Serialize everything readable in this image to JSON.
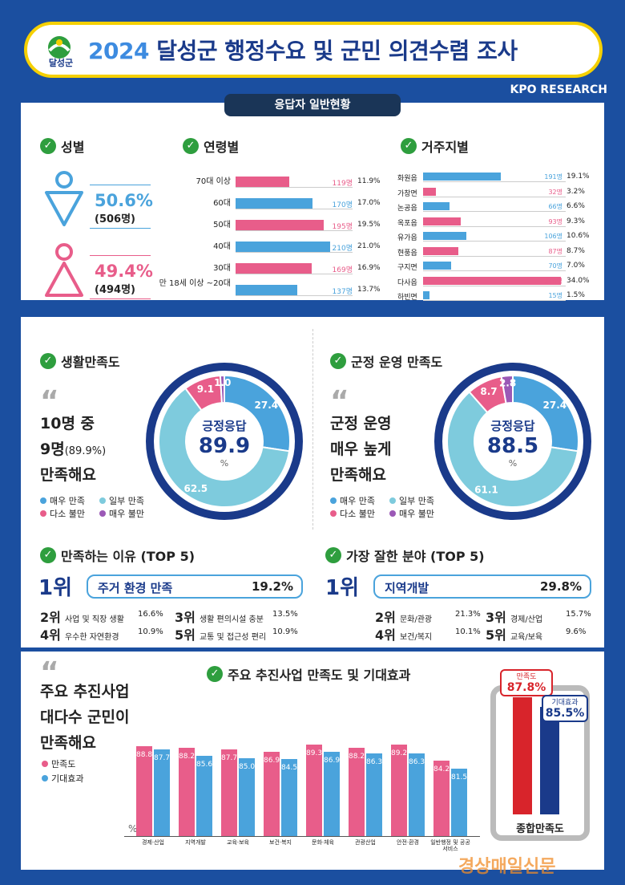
{
  "header": {
    "logo_text": "달성군",
    "title_year": "2024",
    "title_rest": "달성군 행정수요 및 군민 의견수렴 조사",
    "org": "KPO RESEARCH"
  },
  "section1": {
    "tab": "응답자 일반현황",
    "gender_title": "성별",
    "age_title": "연령별",
    "region_title": "거주지별",
    "male": {
      "pct": "50.6%",
      "count": "(506명)"
    },
    "female": {
      "pct": "49.4%",
      "count": "(494명)"
    }
  },
  "colors": {
    "pink": "#e85d8a",
    "blue": "#4aa3dc",
    "light": "#7ecbdd",
    "purple": "#9b59b6",
    "navy": "#1a3a8a",
    "green": "#2e9e3e"
  },
  "age": [
    {
      "label": "70대 이상",
      "count": "119명",
      "pct": "11.9%",
      "value": 11.9,
      "color": "pink"
    },
    {
      "label": "60대",
      "count": "170명",
      "pct": "17.0%",
      "value": 17.0,
      "color": "blue"
    },
    {
      "label": "50대",
      "count": "195명",
      "pct": "19.5%",
      "value": 19.5,
      "color": "pink"
    },
    {
      "label": "40대",
      "count": "210명",
      "pct": "21.0%",
      "value": 21.0,
      "color": "blue"
    },
    {
      "label": "30대",
      "count": "169명",
      "pct": "16.9%",
      "value": 16.9,
      "color": "pink"
    },
    {
      "label": "만 18세 이상 ~20대",
      "count": "137명",
      "pct": "13.7%",
      "value": 13.7,
      "color": "blue"
    }
  ],
  "region": [
    {
      "label": "화원읍",
      "count": "191명",
      "pct": "19.1%",
      "value": 19.1,
      "color": "blue"
    },
    {
      "label": "가창면",
      "count": "32명",
      "pct": "3.2%",
      "value": 3.2,
      "color": "pink"
    },
    {
      "label": "논공읍",
      "count": "66명",
      "pct": "6.6%",
      "value": 6.6,
      "color": "blue"
    },
    {
      "label": "옥포읍",
      "count": "93명",
      "pct": "9.3%",
      "value": 9.3,
      "color": "pink"
    },
    {
      "label": "유가읍",
      "count": "106명",
      "pct": "10.6%",
      "value": 10.6,
      "color": "blue"
    },
    {
      "label": "현풍읍",
      "count": "87명",
      "pct": "8.7%",
      "value": 8.7,
      "color": "pink"
    },
    {
      "label": "구지면",
      "count": "70명",
      "pct": "7.0%",
      "value": 7.0,
      "color": "blue"
    },
    {
      "label": "다사읍",
      "count": "340명",
      "pct": "34.0%",
      "value": 34.0,
      "color": "pink"
    },
    {
      "label": "하빈면",
      "count": "15명",
      "pct": "1.5%",
      "value": 1.5,
      "color": "blue"
    }
  ],
  "life": {
    "title": "생활만족도",
    "l1": "10명 중",
    "l2a": "9명",
    "l2b": "(89.9%)",
    "l3": "만족해요",
    "center_label": "긍정응답",
    "center_value": "89.9",
    "unit": "%"
  },
  "gov": {
    "title": "군정 운영 만족도",
    "l1": "군정 운영",
    "l2": "매우 높게",
    "l3": "만족해요",
    "center_label": "긍정응답",
    "center_value": "88.5",
    "unit": "%"
  },
  "legend": [
    "매우 만족",
    "일부 만족",
    "다소 불만",
    "매우 불만"
  ],
  "reasons": {
    "title": "만족하는 이유 (TOP 5)",
    "rank1": "1위",
    "top": "주거 환경 만족",
    "top_pct": "19.2%",
    "items": [
      {
        "r": "2위",
        "t": "사업 및 직장 생활",
        "p": "16.6%"
      },
      {
        "r": "3위",
        "t": "생활 편의시설 충분",
        "p": "13.5%"
      },
      {
        "r": "4위",
        "t": "우수한 자연환경",
        "p": "10.9%"
      },
      {
        "r": "5위",
        "t": "교통 및 접근성 편리",
        "p": "10.9%"
      }
    ]
  },
  "best": {
    "title": "가장 잘한 분야 (TOP 5)",
    "rank1": "1위",
    "top": "지역개발",
    "top_pct": "29.8%",
    "items": [
      {
        "r": "2위",
        "t": "문화/관광",
        "p": "21.3%"
      },
      {
        "r": "3위",
        "t": "경제/산업",
        "p": "15.7%"
      },
      {
        "r": "4위",
        "t": "보건/복지",
        "p": "10.1%"
      },
      {
        "r": "5위",
        "t": "교육/보육",
        "p": "9.6%"
      }
    ]
  },
  "projects": {
    "quote1": "주요 추진사업",
    "quote2": "대다수 군민이",
    "quote3": "만족해요",
    "title": "주요 추진사업 만족도 및 기대효과",
    "unit": "%",
    "total_label": "종합만족도",
    "sat_label": "만족도",
    "sat_value": "87.8%",
    "exp_label": "기대효과",
    "exp_value": "85.5%"
  },
  "watermark": "경상매일신문",
  "chart_data": [
    {
      "type": "pie",
      "title": "생활만족도",
      "categories": [
        "매우 만족",
        "일부 만족",
        "다소 불만",
        "매우 불만"
      ],
      "values": [
        27.4,
        62.5,
        9.1,
        1.0
      ]
    },
    {
      "type": "pie",
      "title": "군정 운영 만족도",
      "categories": [
        "매우 만족",
        "일부 만족",
        "다소 불만",
        "매우 불만"
      ],
      "values": [
        27.4,
        61.1,
        8.7,
        2.8
      ]
    },
    {
      "type": "bar",
      "title": "주요 추진사업 만족도 및 기대효과",
      "categories": [
        "경제·산업",
        "지역개발",
        "교육·보육",
        "보건·복지",
        "문화·체육",
        "관광산업",
        "안전·환경",
        "일반행정 및 공공서비스"
      ],
      "series": [
        {
          "name": "만족도",
          "values": [
            88.8,
            88.2,
            87.7,
            86.9,
            89.3,
            88.2,
            89.2,
            84.2
          ]
        },
        {
          "name": "기대효과",
          "values": [
            87.7,
            85.6,
            85.0,
            84.5,
            86.9,
            86.3,
            86.3,
            81.5
          ]
        }
      ],
      "ylabel": "%"
    },
    {
      "type": "bar",
      "title": "종합만족도",
      "categories": [
        "만족도",
        "기대효과"
      ],
      "values": [
        87.8,
        85.5
      ]
    }
  ]
}
